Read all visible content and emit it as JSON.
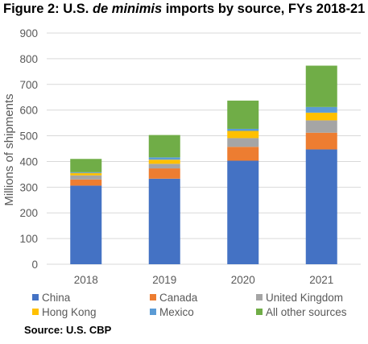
{
  "figure": {
    "title_prefix": "Figure 2: U.S. ",
    "title_italic": "de minimis",
    "title_suffix": " imports by source, FYs 2018-21",
    "source": "Source: U.S. CBP"
  },
  "chart_data": {
    "type": "bar",
    "stacked": true,
    "categories": [
      "2018",
      "2019",
      "2020",
      "2021"
    ],
    "series": [
      {
        "name": "China",
        "color": "#4472C4",
        "values": [
          306,
          333,
          403,
          447
        ]
      },
      {
        "name": "Canada",
        "color": "#ED7D31",
        "values": [
          24,
          40,
          54,
          65
        ]
      },
      {
        "name": "United Kingdom",
        "color": "#A5A5A5",
        "values": [
          16,
          18,
          34,
          48
        ]
      },
      {
        "name": "Hong Kong",
        "color": "#FFC000",
        "values": [
          9,
          16,
          28,
          30
        ]
      },
      {
        "name": "Mexico",
        "color": "#5B9BD5",
        "values": [
          3,
          9,
          8,
          22
        ]
      },
      {
        "name": "All other sources",
        "color": "#70AD47",
        "values": [
          52,
          87,
          110,
          161
        ]
      }
    ],
    "ylabel": "Millions of shipments",
    "xlabel": "",
    "ylim": [
      0,
      900
    ],
    "yticks": [
      "0",
      "100",
      "200",
      "300",
      "400",
      "500",
      "600",
      "700",
      "800",
      "900"
    ],
    "grid": true,
    "legend_position": "bottom"
  }
}
